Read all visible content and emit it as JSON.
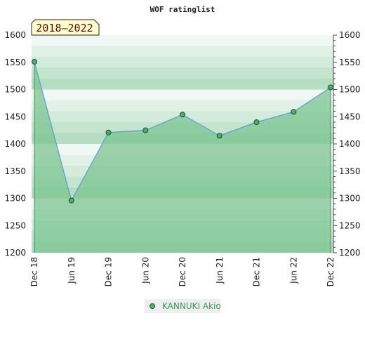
{
  "chart_data": {
    "type": "area",
    "title": "WOF ratinglist",
    "badge": "2018–2022",
    "categories": [
      "Dec 18",
      "Jun 19",
      "Dec 19",
      "Jun 20",
      "Dec 20",
      "Jun 21",
      "Dec 21",
      "Jun 22",
      "Dec 22"
    ],
    "series": [
      {
        "name": "KANNUKI Akio",
        "values": [
          1551,
          1296,
          1421,
          1425,
          1454,
          1415,
          1440,
          1459,
          1504
        ]
      }
    ],
    "ylim": [
      1200,
      1600
    ],
    "yticks": [
      1200,
      1250,
      1300,
      1350,
      1400,
      1450,
      1500,
      1550,
      1600
    ],
    "legend_position": "bottom",
    "grid": "banded",
    "colors": {
      "line": "#5b9bd5",
      "fill": "#7cc492",
      "marker": "#4caf6a",
      "band_dark": "#b5ddc1",
      "band_light": "#f1f8f3",
      "legend_text": "#3a9a5a",
      "badge_bg": "#ffffcc"
    }
  }
}
